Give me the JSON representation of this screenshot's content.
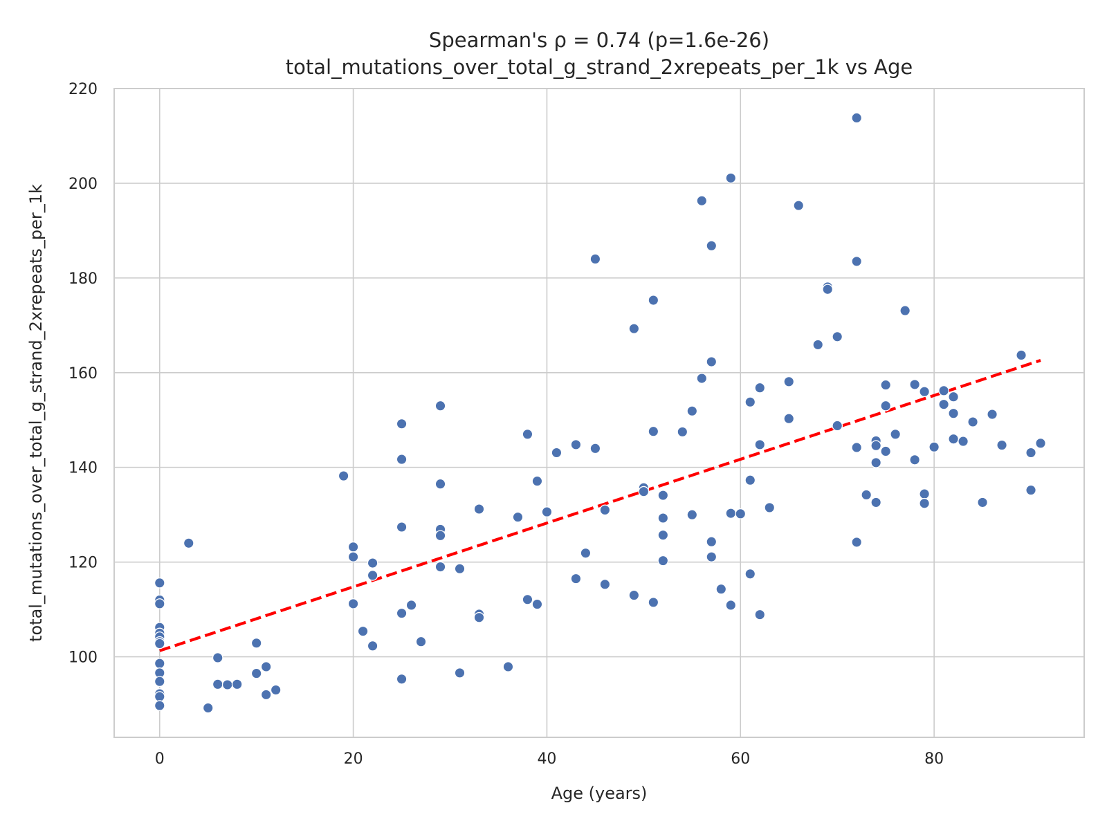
{
  "colors": {
    "points": "#4c72b0",
    "point_edge": "#ffffff",
    "trend": "#ff0000",
    "grid": "#cccccc",
    "text": "#262626"
  },
  "chart_data": {
    "type": "scatter",
    "title": "Spearman's ρ = 0.74 (p=1.6e-26)",
    "subtitle": "total_mutations_over_total_g_strand_2xrepeats_per_1k vs Age",
    "xlabel": "Age (years)",
    "ylabel": "total_mutations_over_total_g_strand_2xrepeats_per_1k",
    "xlim": [
      -4.7,
      95.5
    ],
    "ylim": [
      83,
      220
    ],
    "xticks": [
      0,
      20,
      40,
      60,
      80
    ],
    "yticks": [
      100,
      120,
      140,
      160,
      180,
      200,
      220
    ],
    "grid": true,
    "trendline": {
      "style": "dashed",
      "x": [
        0,
        91
      ],
      "y": [
        101.3,
        162.6
      ]
    },
    "points": [
      [
        0,
        115.6
      ],
      [
        0,
        112.0
      ],
      [
        0,
        111.2
      ],
      [
        0,
        106.2
      ],
      [
        0,
        105.0
      ],
      [
        0,
        104.2
      ],
      [
        0,
        103.2
      ],
      [
        0,
        102.8
      ],
      [
        0,
        98.6
      ],
      [
        0,
        96.6
      ],
      [
        0,
        94.8
      ],
      [
        0,
        92.2
      ],
      [
        0,
        91.6
      ],
      [
        0,
        89.7
      ],
      [
        3,
        124.0
      ],
      [
        5,
        89.2
      ],
      [
        6,
        99.8
      ],
      [
        6,
        94.2
      ],
      [
        7,
        94.1
      ],
      [
        8,
        94.2
      ],
      [
        10,
        102.9
      ],
      [
        10,
        96.5
      ],
      [
        11,
        97.9
      ],
      [
        11,
        92.0
      ],
      [
        12,
        93.0
      ],
      [
        19,
        138.2
      ],
      [
        20,
        123.2
      ],
      [
        20,
        121.1
      ],
      [
        20,
        111.2
      ],
      [
        21,
        105.4
      ],
      [
        22,
        119.8
      ],
      [
        22,
        117.2
      ],
      [
        22,
        102.3
      ],
      [
        25,
        149.2
      ],
      [
        25,
        141.7
      ],
      [
        25,
        127.4
      ],
      [
        25,
        109.2
      ],
      [
        25,
        95.3
      ],
      [
        26,
        110.9
      ],
      [
        27,
        103.2
      ],
      [
        29,
        153.0
      ],
      [
        29,
        136.5
      ],
      [
        29,
        126.9
      ],
      [
        29,
        125.6
      ],
      [
        29,
        119.0
      ],
      [
        31,
        118.6
      ],
      [
        31,
        96.6
      ],
      [
        33,
        131.2
      ],
      [
        33,
        109.0
      ],
      [
        33,
        108.3
      ],
      [
        36,
        97.9
      ],
      [
        37,
        129.5
      ],
      [
        38,
        147.0
      ],
      [
        38,
        112.1
      ],
      [
        39,
        137.1
      ],
      [
        39,
        111.1
      ],
      [
        40,
        130.6
      ],
      [
        41,
        143.1
      ],
      [
        43,
        144.8
      ],
      [
        43,
        116.5
      ],
      [
        44,
        121.9
      ],
      [
        45,
        184.0
      ],
      [
        45,
        144.0
      ],
      [
        46,
        131.0
      ],
      [
        46,
        115.3
      ],
      [
        49,
        169.3
      ],
      [
        49,
        113.0
      ],
      [
        50,
        135.7
      ],
      [
        50,
        134.9
      ],
      [
        51,
        175.3
      ],
      [
        51,
        147.6
      ],
      [
        51,
        111.5
      ],
      [
        52,
        134.1
      ],
      [
        52,
        129.3
      ],
      [
        52,
        125.7
      ],
      [
        52,
        120.3
      ],
      [
        54,
        147.5
      ],
      [
        55,
        151.9
      ],
      [
        55,
        130.0
      ],
      [
        56,
        196.3
      ],
      [
        56,
        158.8
      ],
      [
        57,
        186.8
      ],
      [
        57,
        162.3
      ],
      [
        57,
        124.3
      ],
      [
        57,
        121.1
      ],
      [
        58,
        114.3
      ],
      [
        59,
        201.1
      ],
      [
        59,
        130.3
      ],
      [
        59,
        110.9
      ],
      [
        60,
        130.2
      ],
      [
        61,
        153.8
      ],
      [
        61,
        137.3
      ],
      [
        61,
        117.5
      ],
      [
        62,
        156.8
      ],
      [
        62,
        144.8
      ],
      [
        62,
        108.9
      ],
      [
        63,
        131.5
      ],
      [
        65,
        158.1
      ],
      [
        65,
        150.3
      ],
      [
        66,
        195.3
      ],
      [
        68,
        165.9
      ],
      [
        69,
        178.1
      ],
      [
        69,
        177.6
      ],
      [
        70,
        167.6
      ],
      [
        70,
        148.8
      ],
      [
        72,
        213.8
      ],
      [
        72,
        183.5
      ],
      [
        72,
        144.2
      ],
      [
        72,
        124.2
      ],
      [
        73,
        134.2
      ],
      [
        74,
        145.6
      ],
      [
        74,
        144.6
      ],
      [
        74,
        141.0
      ],
      [
        74,
        132.6
      ],
      [
        75,
        157.4
      ],
      [
        75,
        153.0
      ],
      [
        75,
        143.4
      ],
      [
        76,
        147.0
      ],
      [
        77,
        173.1
      ],
      [
        78,
        157.5
      ],
      [
        78,
        141.6
      ],
      [
        79,
        156.0
      ],
      [
        79,
        134.4
      ],
      [
        79,
        132.4
      ],
      [
        80,
        144.3
      ],
      [
        81,
        156.2
      ],
      [
        81,
        153.3
      ],
      [
        82,
        154.9
      ],
      [
        82,
        151.4
      ],
      [
        82,
        146.0
      ],
      [
        83,
        145.5
      ],
      [
        84,
        149.6
      ],
      [
        85,
        132.6
      ],
      [
        86,
        151.2
      ],
      [
        87,
        144.7
      ],
      [
        89,
        163.7
      ],
      [
        90,
        143.1
      ],
      [
        90,
        135.2
      ],
      [
        91,
        145.1
      ]
    ]
  }
}
